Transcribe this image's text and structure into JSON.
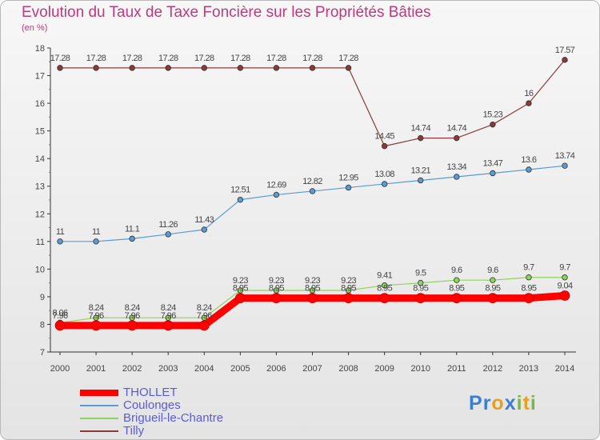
{
  "header": {
    "title": "Evolution du Taux de Taxe Foncière sur les Propriétés Bâties",
    "unit": "(en %)"
  },
  "logo": {
    "text": "Proxiti",
    "letters": [
      {
        "ch": "P",
        "color": "#3a7fd0"
      },
      {
        "ch": "r",
        "color": "#3a7fd0"
      },
      {
        "ch": "o",
        "color": "#e8a020"
      },
      {
        "ch": "x",
        "color": "#3a7fd0"
      },
      {
        "ch": "i",
        "color": "#7ab648"
      },
      {
        "ch": "t",
        "color": "#e8a020"
      },
      {
        "ch": "i",
        "color": "#7ab648"
      }
    ]
  },
  "chart_data": {
    "type": "line",
    "title": "Evolution du Taux de Taxe Foncière sur les Propriétés Bâties",
    "ylabel": "(en %)",
    "xlabel": "",
    "ylim": [
      7,
      18
    ],
    "yticks": [
      7,
      8,
      9,
      10,
      11,
      12,
      13,
      14,
      15,
      16,
      17,
      18
    ],
    "categories": [
      "2000",
      "2001",
      "2002",
      "2003",
      "2004",
      "2005",
      "2006",
      "2007",
      "2008",
      "2009",
      "2010",
      "2011",
      "2012",
      "2013",
      "2014"
    ],
    "grid": false,
    "legend_position": "bottom-left",
    "series": [
      {
        "name": "Tilly",
        "color": "#8b3a3a",
        "line_width": 1.2,
        "values": [
          17.28,
          17.28,
          17.28,
          17.28,
          17.28,
          17.28,
          17.28,
          17.28,
          17.28,
          14.45,
          14.74,
          14.74,
          15.23,
          16,
          17.57
        ],
        "labels": [
          "17.28",
          "17.28",
          "17.28",
          "17.28",
          "17.28",
          "17.28",
          "17.28",
          "17.28",
          "17.28",
          "14.45",
          "14.74",
          "14.74",
          "15.23",
          "16",
          "17.57"
        ]
      },
      {
        "name": "Coulonges",
        "color": "#5b9bd5",
        "line_width": 1.2,
        "values": [
          11,
          11,
          11.1,
          11.26,
          11.43,
          12.51,
          12.69,
          12.82,
          12.95,
          13.08,
          13.21,
          13.34,
          13.47,
          13.6,
          13.74
        ],
        "labels": [
          "11",
          "11",
          "11.1",
          "11.26",
          "11.43",
          "12.51",
          "12.69",
          "12.82",
          "12.95",
          "13.08",
          "13.21",
          "13.34",
          "13.47",
          "13.6",
          "13.74"
        ]
      },
      {
        "name": "Brigueil-le-Chantre",
        "color": "#8fd45a",
        "line_width": 1.2,
        "values": [
          8.06,
          8.24,
          8.24,
          8.24,
          8.24,
          9.23,
          9.23,
          9.23,
          9.23,
          9.41,
          9.5,
          9.6,
          9.6,
          9.7,
          9.7
        ],
        "labels": [
          "8.06",
          "8.24",
          "8.24",
          "8.24",
          "8.24",
          "9.23",
          "9.23",
          "9.23",
          "9.23",
          "9.41",
          "9.5",
          "9.6",
          "9.6",
          "9.7",
          "9.7"
        ]
      },
      {
        "name": "THOLLET",
        "color": "#ff0000",
        "line_width": 9,
        "values": [
          7.96,
          7.96,
          7.96,
          7.96,
          7.96,
          8.95,
          8.95,
          8.95,
          8.95,
          8.95,
          8.95,
          8.95,
          8.95,
          8.95,
          9.04
        ],
        "labels": [
          "7.96",
          "7.96",
          "7.96",
          "7.96",
          "7.96",
          "8.95",
          "8.95",
          "8.95",
          "8.95",
          "8.95",
          "8.95",
          "8.95",
          "8.95",
          "8.95",
          "9.04"
        ]
      }
    ],
    "legend": [
      "THOLLET",
      "Coulonges",
      "Brigueil-le-Chantre",
      "Tilly"
    ]
  }
}
